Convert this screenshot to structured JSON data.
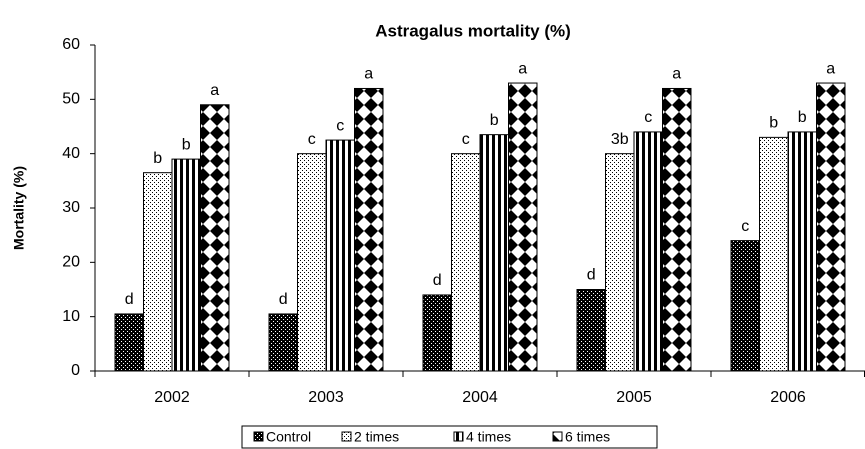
{
  "chart_data": {
    "type": "bar",
    "title": "Astragalus mortality (%)",
    "y_label": "Mortality (%)",
    "categories": [
      "2002",
      "2003",
      "2004",
      "2005",
      "2006"
    ],
    "series": [
      {
        "name": "Control",
        "color": "#000000",
        "values": [
          10.5,
          10.5,
          14,
          15,
          24
        ],
        "labels": [
          "d",
          "d",
          "d",
          "d",
          "c"
        ]
      },
      {
        "name": "2 times",
        "color": "#000000",
        "values": [
          36.5,
          40,
          40,
          40,
          43
        ],
        "labels": [
          "b",
          "c",
          "c",
          "3b",
          "b"
        ]
      },
      {
        "name": "4 times",
        "color": "#000000",
        "values": [
          39,
          42.5,
          43.5,
          44,
          44
        ],
        "labels": [
          "b",
          "c",
          "b",
          "c",
          "b"
        ]
      },
      {
        "name": "6 times",
        "color": "#000000",
        "values": [
          49,
          52,
          53,
          52,
          53
        ],
        "labels": [
          "a",
          "a",
          "a",
          "a",
          "a"
        ]
      }
    ],
    "ylim": [
      0,
      60
    ],
    "yticks": [
      0,
      10,
      20,
      30,
      40,
      50,
      60
    ]
  }
}
